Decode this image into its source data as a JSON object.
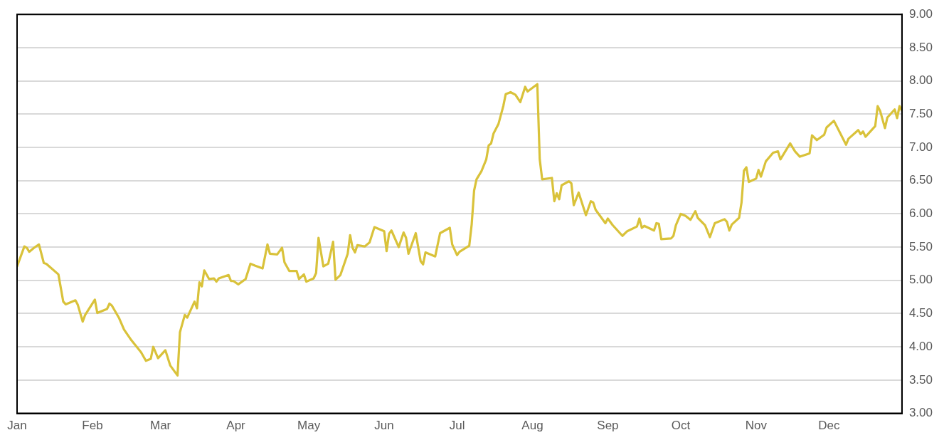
{
  "chart_data": {
    "type": "line",
    "xlim": [
      "--01-01",
      "--12-31"
    ],
    "xticks": [
      {
        "value": "--01-01",
        "label": "Jan"
      },
      {
        "value": "--02-01",
        "label": "Feb"
      },
      {
        "value": "--03-01",
        "label": "Mar"
      },
      {
        "value": "--04-01",
        "label": "Apr"
      },
      {
        "value": "--05-01",
        "label": "May"
      },
      {
        "value": "--06-01",
        "label": "Jun"
      },
      {
        "value": "--07-01",
        "label": "Jul"
      },
      {
        "value": "--08-01",
        "label": "Aug"
      },
      {
        "value": "--09-01",
        "label": "Sep"
      },
      {
        "value": "--10-01",
        "label": "Oct"
      },
      {
        "value": "--11-01",
        "label": "Nov"
      },
      {
        "value": "--12-01",
        "label": "Dec"
      }
    ],
    "ylim": [
      3,
      9
    ],
    "yticks": [
      {
        "value": 3,
        "label": "3.00"
      },
      {
        "value": 3.5,
        "label": "3.50"
      },
      {
        "value": 4,
        "label": "4.00"
      },
      {
        "value": 4.5,
        "label": "4.50"
      },
      {
        "value": 5,
        "label": "5.00"
      },
      {
        "value": 5.5,
        "label": "5.50"
      },
      {
        "value": 6,
        "label": "6.00"
      },
      {
        "value": 6.5,
        "label": "6.50"
      },
      {
        "value": 7,
        "label": "7.00"
      },
      {
        "value": 7.5,
        "label": "7.50"
      },
      {
        "value": 8,
        "label": "8.00"
      },
      {
        "value": 8.5,
        "label": "8.50"
      },
      {
        "value": 9,
        "label": "9.00"
      }
    ],
    "grid": "y",
    "legend": false,
    "marker": "none",
    "line_style": "solid",
    "series": [
      {
        "color": "#d9c23a",
        "x": [
          "--01-01",
          "--01-04",
          "--01-05",
          "--01-06",
          "--01-08",
          "--01-10",
          "--01-12",
          "--01-13",
          "--01-18",
          "--01-20",
          "--01-21",
          "--01-25",
          "--01-26",
          "--01-28",
          "--01-29",
          "--02-02",
          "--02-03",
          "--02-07",
          "--02-08",
          "--02-09",
          "--02-12",
          "--02-14",
          "--02-17",
          "--02-21",
          "--02-23",
          "--02-25",
          "--02-26",
          "--02-28",
          "--03-03",
          "--03-05",
          "--03-08",
          "--03-09",
          "--03-11",
          "--03-12",
          "--03-15",
          "--03-16",
          "--03-17",
          "--03-18",
          "--03-19",
          "--03-21",
          "--03-23",
          "--03-24",
          "--03-25",
          "--03-29",
          "--03-30",
          "--03-31",
          "--04-02",
          "--04-05",
          "--04-07",
          "--04-09",
          "--04-12",
          "--04-14",
          "--04-15",
          "--04-18",
          "--04-20",
          "--04-21",
          "--04-23",
          "--04-26",
          "--04-27",
          "--04-29",
          "--04-30",
          "--05-03",
          "--05-04",
          "--05-05",
          "--05-07",
          "--05-09",
          "--05-11",
          "--05-12",
          "--05-14",
          "--05-17",
          "--05-18",
          "--05-19",
          "--05-20",
          "--05-21",
          "--05-24",
          "--05-26",
          "--05-28",
          "--06-01",
          "--06-02",
          "--06-03",
          "--06-04",
          "--06-07",
          "--06-09",
          "--06-10",
          "--06-11",
          "--06-14",
          "--06-16",
          "--06-17",
          "--06-18",
          "--06-22",
          "--06-24",
          "--06-28",
          "--06-29",
          "--07-01",
          "--07-02",
          "--07-06",
          "--07-07",
          "--07-08",
          "--07-09",
          "--07-11",
          "--07-13",
          "--07-14",
          "--07-15",
          "--07-16",
          "--07-18",
          "--07-20",
          "--07-21",
          "--07-23",
          "--07-25",
          "--07-27",
          "--07-29",
          "--07-30",
          "--08-03",
          "--08-04",
          "--08-05",
          "--08-09",
          "--08-10",
          "--08-11",
          "--08-12",
          "--08-13",
          "--08-16",
          "--08-17",
          "--08-18",
          "--08-20",
          "--08-23",
          "--08-25",
          "--08-26",
          "--08-27",
          "--08-31",
          "--09-01",
          "--09-03",
          "--09-07",
          "--09-09",
          "--09-13",
          "--09-14",
          "--09-15",
          "--09-16",
          "--09-20",
          "--09-21",
          "--09-22",
          "--09-23",
          "--09-27",
          "--09-28",
          "--09-29",
          "--10-01",
          "--10-03",
          "--10-05",
          "--10-07",
          "--10-08",
          "--10-11",
          "--10-13",
          "--10-15",
          "--10-19",
          "--10-20",
          "--10-21",
          "--10-22",
          "--10-25",
          "--10-26",
          "--10-27",
          "--10-28",
          "--10-29",
          "--11-01",
          "--11-02",
          "--11-03",
          "--11-05",
          "--11-08",
          "--11-10",
          "--11-11",
          "--11-15",
          "--11-17",
          "--11-19",
          "--11-23",
          "--11-24",
          "--11-26",
          "--11-29",
          "--11-30",
          "--12-03",
          "--12-08",
          "--12-09",
          "--12-13",
          "--12-14",
          "--12-15",
          "--12-16",
          "--12-20",
          "--12-21",
          "--12-22",
          "--12-24",
          "--12-25",
          "--12-28",
          "--12-29",
          "--12-30",
          "--12-31"
        ],
        "values": [
          5.21,
          5.51,
          5.49,
          5.43,
          5.49,
          5.54,
          5.26,
          5.25,
          5.09,
          4.68,
          4.64,
          4.7,
          4.63,
          4.38,
          4.48,
          4.71,
          4.51,
          4.57,
          4.65,
          4.62,
          4.43,
          4.26,
          4.1,
          3.92,
          3.79,
          3.82,
          4.0,
          3.83,
          3.95,
          3.72,
          3.57,
          4.22,
          4.48,
          4.44,
          4.68,
          4.58,
          4.97,
          4.91,
          5.15,
          5.02,
          5.03,
          4.98,
          5.03,
          5.08,
          4.99,
          4.99,
          4.94,
          5.02,
          5.25,
          5.22,
          5.18,
          5.54,
          5.4,
          5.39,
          5.49,
          5.27,
          5.14,
          5.14,
          5.02,
          5.09,
          4.98,
          5.03,
          5.11,
          5.64,
          5.21,
          5.25,
          5.58,
          5.01,
          5.08,
          5.4,
          5.68,
          5.49,
          5.42,
          5.53,
          5.51,
          5.57,
          5.8,
          5.74,
          5.44,
          5.7,
          5.75,
          5.5,
          5.72,
          5.64,
          5.4,
          5.71,
          5.29,
          5.24,
          5.42,
          5.36,
          5.71,
          5.79,
          5.54,
          5.38,
          5.43,
          5.52,
          5.84,
          6.35,
          6.52,
          6.64,
          6.82,
          7.03,
          7.06,
          7.21,
          7.35,
          7.62,
          7.8,
          7.83,
          7.79,
          7.68,
          7.91,
          7.84,
          7.95,
          6.82,
          6.52,
          6.54,
          6.19,
          6.31,
          6.22,
          6.43,
          6.49,
          6.46,
          6.13,
          6.32,
          5.98,
          6.19,
          6.17,
          6.06,
          5.86,
          5.93,
          5.83,
          5.67,
          5.74,
          5.81,
          5.93,
          5.79,
          5.82,
          5.75,
          5.86,
          5.85,
          5.62,
          5.63,
          5.67,
          5.83,
          6.0,
          5.97,
          5.91,
          6.04,
          5.94,
          5.83,
          5.65,
          5.86,
          5.92,
          5.88,
          5.75,
          5.84,
          5.94,
          6.17,
          6.65,
          6.7,
          6.48,
          6.53,
          6.66,
          6.56,
          6.79,
          6.92,
          6.94,
          6.82,
          7.06,
          6.94,
          6.86,
          6.91,
          7.18,
          7.11,
          7.19,
          7.3,
          7.4,
          7.04,
          7.13,
          7.26,
          7.2,
          7.24,
          7.16,
          7.32,
          7.62,
          7.55,
          7.29,
          7.45,
          7.57,
          7.44,
          7.62,
          7.55
        ]
      }
    ]
  }
}
